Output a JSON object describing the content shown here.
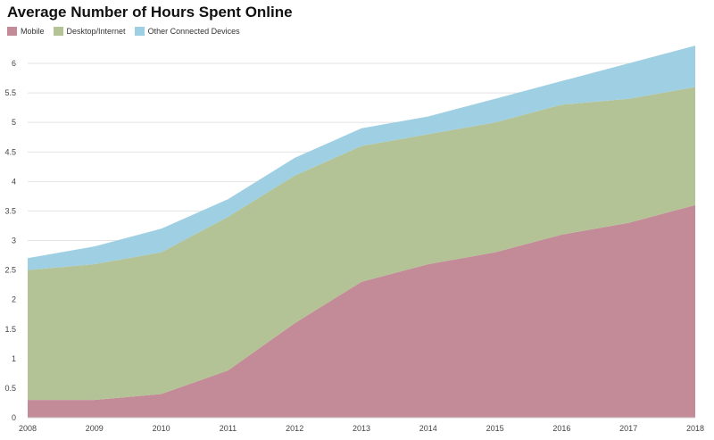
{
  "chart_data": {
    "type": "area",
    "stacked": true,
    "title": "Average Number of Hours Spent Online",
    "x": [
      "2008",
      "2009",
      "2010",
      "2011",
      "2012",
      "2013",
      "2014",
      "2015",
      "2016",
      "2017",
      "2018"
    ],
    "yticks": [
      "0",
      "0.5",
      "1",
      "1.5",
      "2",
      "2.5",
      "3",
      "3.5",
      "4",
      "4.5",
      "5",
      "5.5",
      "6"
    ],
    "ylim": [
      0,
      6.5
    ],
    "grid": true,
    "legend_position": "top-left",
    "series": [
      {
        "name": "Mobile",
        "color": "#c38b97",
        "values": [
          0.3,
          0.3,
          0.4,
          0.8,
          1.6,
          2.3,
          2.6,
          2.8,
          3.1,
          3.3,
          3.6
        ]
      },
      {
        "name": "Desktop/Internet",
        "color": "#b4c396",
        "values": [
          2.2,
          2.3,
          2.4,
          2.6,
          2.5,
          2.3,
          2.2,
          2.2,
          2.2,
          2.1,
          2.0
        ]
      },
      {
        "name": "Other Connected Devices",
        "color": "#9fcfe2",
        "values": [
          0.2,
          0.3,
          0.4,
          0.3,
          0.3,
          0.3,
          0.3,
          0.4,
          0.4,
          0.6,
          0.7
        ]
      }
    ]
  }
}
